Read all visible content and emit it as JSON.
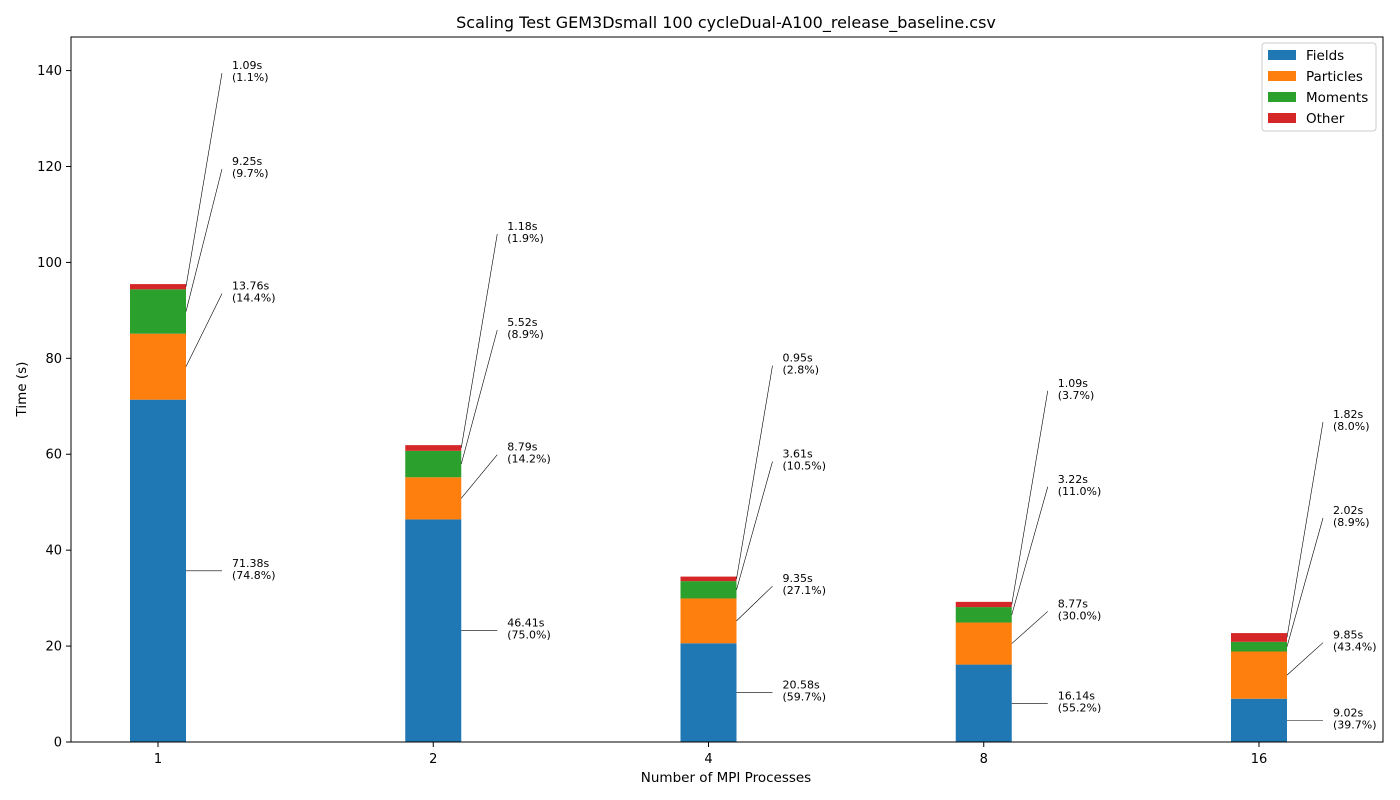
{
  "chart_data": {
    "type": "bar",
    "stacked": true,
    "title": "Scaling Test GEM3Dsmall 100 cycleDual-A100_release_baseline.csv",
    "xlabel": "Number of MPI Processes",
    "ylabel": "Time (s)",
    "ylim": [
      0,
      147
    ],
    "yticks": [
      0,
      20,
      40,
      60,
      80,
      100,
      120,
      140
    ],
    "categories": [
      "1",
      "2",
      "4",
      "8",
      "16"
    ],
    "legend_position": "top-right",
    "grid": false,
    "series": [
      {
        "name": "Fields",
        "color": "#1f77b4",
        "values": [
          71.38,
          46.41,
          20.58,
          16.14,
          9.02
        ],
        "labels": [
          "71.38s\n(74.8%)",
          "46.41s\n(75.0%)",
          "20.58s\n(59.7%)",
          "16.14s\n(55.2%)",
          "9.02s\n(39.7%)"
        ]
      },
      {
        "name": "Particles",
        "color": "#ff7f0e",
        "values": [
          13.76,
          8.79,
          9.35,
          8.77,
          9.85
        ],
        "labels": [
          "13.76s\n(14.4%)",
          "8.79s\n(14.2%)",
          "9.35s\n(27.1%)",
          "8.77s\n(30.0%)",
          "9.85s\n(43.4%)"
        ]
      },
      {
        "name": "Moments",
        "color": "#2ca02c",
        "values": [
          9.25,
          5.52,
          3.61,
          3.22,
          2.02
        ],
        "labels": [
          "9.25s\n(9.7%)",
          "5.52s\n(8.9%)",
          "3.61s\n(10.5%)",
          "3.22s\n(11.0%)",
          "2.02s\n(8.9%)"
        ]
      },
      {
        "name": "Other",
        "color": "#d62728",
        "values": [
          1.09,
          1.18,
          0.95,
          1.09,
          1.82
        ],
        "labels": [
          "1.09s\n(1.1%)",
          "1.18s\n(1.9%)",
          "0.95s\n(2.8%)",
          "1.09s\n(3.7%)",
          "1.82s\n(8.0%)"
        ]
      }
    ]
  }
}
